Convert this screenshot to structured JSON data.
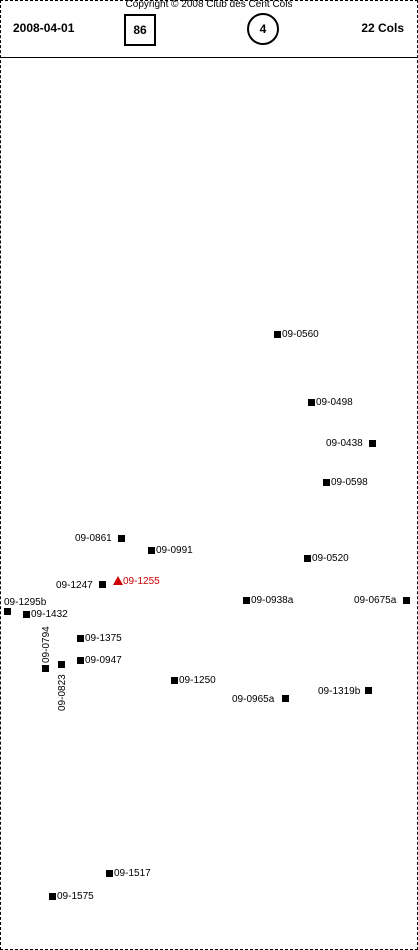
{
  "header": {
    "copyright": "Copyright © 2008 Club des Cent Cols",
    "date": "2008-04-01",
    "box_number": "86",
    "circle_number": "4",
    "cols_count": "22 Cols"
  },
  "colors": {
    "ink": "#000000",
    "highlight": "#cc0000"
  },
  "markers": [
    {
      "id": "09-0560",
      "symbol": "square"
    },
    {
      "id": "09-0498",
      "symbol": "square"
    },
    {
      "id": "09-0438",
      "symbol": "square"
    },
    {
      "id": "09-0598",
      "symbol": "square"
    },
    {
      "id": "09-0861",
      "symbol": "square"
    },
    {
      "id": "09-0991",
      "symbol": "square"
    },
    {
      "id": "09-0520",
      "symbol": "square"
    },
    {
      "id": "09-1247",
      "symbol": "square"
    },
    {
      "id": "09-1255",
      "symbol": "triangle",
      "highlight": true
    },
    {
      "id": "09-1295b",
      "symbol": "square"
    },
    {
      "id": "09-1432",
      "symbol": "square"
    },
    {
      "id": "09-0938a",
      "symbol": "square"
    },
    {
      "id": "09-0675a",
      "symbol": "square"
    },
    {
      "id": "09-0794",
      "symbol": "square"
    },
    {
      "id": "09-1375",
      "symbol": "square"
    },
    {
      "id": "09-0823",
      "symbol": "square"
    },
    {
      "id": "09-0947",
      "symbol": "square"
    },
    {
      "id": "09-1250",
      "symbol": "square"
    },
    {
      "id": "09-0965a",
      "symbol": "square"
    },
    {
      "id": "09-1319b",
      "symbol": "square"
    },
    {
      "id": "09-1517",
      "symbol": "square"
    },
    {
      "id": "09-1575",
      "symbol": "square"
    }
  ]
}
